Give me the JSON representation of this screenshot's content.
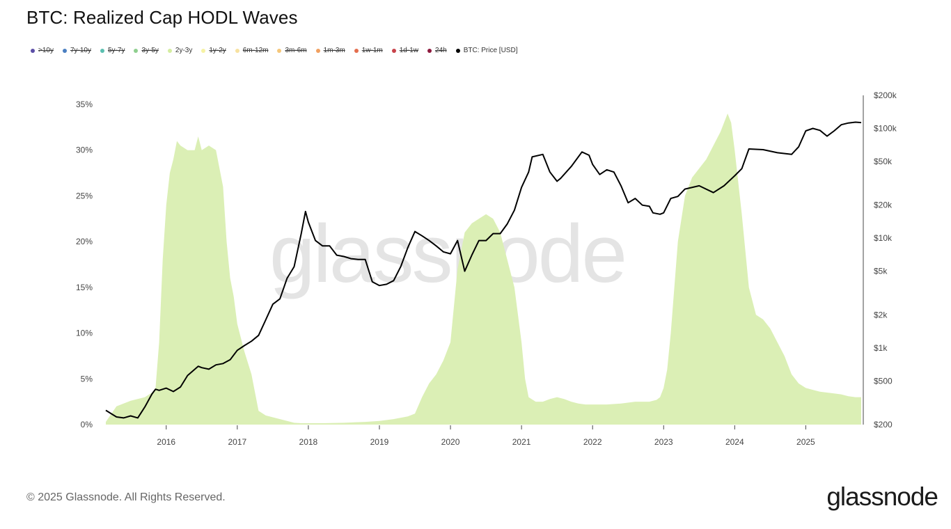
{
  "header": {
    "title": "BTC: Realized Cap HODL Waves"
  },
  "legend": [
    {
      "label": ">10y",
      "color": "#5b4ea6",
      "active": false
    },
    {
      "label": "7y-10y",
      "color": "#4a7fc1",
      "active": false
    },
    {
      "label": "5y-7y",
      "color": "#5bbfb0",
      "active": false
    },
    {
      "label": "3y-5y",
      "color": "#8fcf8f",
      "active": false
    },
    {
      "label": "2y-3y",
      "color": "#d4eda0",
      "active": true
    },
    {
      "label": "1y-2y",
      "color": "#f6f2a4",
      "active": false
    },
    {
      "label": "6m-12m",
      "color": "#f7e2a0",
      "active": false
    },
    {
      "label": "3m-6m",
      "color": "#f5c77a",
      "active": false
    },
    {
      "label": "1m-3m",
      "color": "#f0a060",
      "active": false
    },
    {
      "label": "1w-1m",
      "color": "#e46e4e",
      "active": false
    },
    {
      "label": "1d-1w",
      "color": "#c8424a",
      "active": false
    },
    {
      "label": "24h",
      "color": "#8e1a3e",
      "active": false
    },
    {
      "label": "BTC: Price [USD]",
      "color": "#000000",
      "active": true
    }
  ],
  "watermark": "glassnode",
  "footer": {
    "copyright": "© 2025 Glassnode. All Rights Reserved.",
    "logo": "glassnode"
  },
  "chart_data": {
    "type": "area",
    "title": "BTC: Realized Cap HODL Waves",
    "x_ticks": [
      "2016",
      "2017",
      "2018",
      "2019",
      "2020",
      "2021",
      "2022",
      "2023",
      "2024",
      "2025"
    ],
    "y_left": {
      "ticks": [
        "0%",
        "5%",
        "10%",
        "15%",
        "20%",
        "25%",
        "30%",
        "35%"
      ],
      "range": [
        0,
        35
      ],
      "unit": "%"
    },
    "y_right": {
      "ticks": [
        "$200",
        "$500",
        "$1k",
        "$2k",
        "$5k",
        "$10k",
        "$20k",
        "$50k",
        "$100k",
        "$200k"
      ],
      "range": [
        200,
        200000
      ],
      "scale": "log"
    },
    "grid": false,
    "legend_position": "top-left",
    "colors": {
      "area": "#dbefb5",
      "price_line": "#000000"
    },
    "series": [
      {
        "name": "2y-3y",
        "axis": "left",
        "style": "area",
        "x": [
          2015.15,
          2015.3,
          2015.5,
          2015.7,
          2015.8,
          2015.85,
          2015.9,
          2015.95,
          2016.0,
          2016.05,
          2016.1,
          2016.15,
          2016.2,
          2016.3,
          2016.4,
          2016.45,
          2016.5,
          2016.6,
          2016.7,
          2016.8,
          2016.85,
          2016.9,
          2016.95,
          2017.0,
          2017.1,
          2017.2,
          2017.3,
          2017.4,
          2017.5,
          2017.6,
          2017.7,
          2017.8,
          2017.9,
          2018.0,
          2018.2,
          2018.5,
          2018.8,
          2019.0,
          2019.2,
          2019.4,
          2019.5,
          2019.6,
          2019.7,
          2019.8,
          2019.9,
          2020.0,
          2020.1,
          2020.2,
          2020.3,
          2020.4,
          2020.5,
          2020.6,
          2020.7,
          2020.8,
          2020.9,
          2021.0,
          2021.05,
          2021.1,
          2021.2,
          2021.3,
          2021.4,
          2021.5,
          2021.6,
          2021.7,
          2021.8,
          2021.9,
          2022.0,
          2022.2,
          2022.4,
          2022.6,
          2022.8,
          2022.9,
          2022.95,
          2023.0,
          2023.05,
          2023.1,
          2023.2,
          2023.3,
          2023.4,
          2023.5,
          2023.6,
          2023.7,
          2023.8,
          2023.85,
          2023.9,
          2023.95,
          2024.0,
          2024.1,
          2024.2,
          2024.3,
          2024.4,
          2024.5,
          2024.6,
          2024.7,
          2024.8,
          2024.9,
          2025.0,
          2025.1,
          2025.2,
          2025.3,
          2025.4,
          2025.5,
          2025.6,
          2025.7,
          2025.78
        ],
        "values": [
          0.3,
          2.0,
          2.6,
          3.0,
          3.5,
          4.0,
          9.0,
          18.0,
          24.0,
          27.5,
          29.0,
          31.0,
          30.5,
          30.0,
          30.0,
          31.5,
          30.0,
          30.5,
          30.0,
          26.0,
          20.0,
          16.0,
          14.0,
          11.0,
          8.0,
          5.5,
          1.5,
          1.0,
          0.8,
          0.6,
          0.4,
          0.2,
          0.15,
          0.15,
          0.15,
          0.2,
          0.3,
          0.4,
          0.6,
          0.9,
          1.2,
          3.0,
          4.5,
          5.5,
          7.0,
          9.0,
          17.0,
          21.0,
          22.0,
          22.5,
          23.0,
          22.5,
          21.0,
          18.0,
          15.0,
          9.0,
          5.0,
          3.0,
          2.5,
          2.5,
          2.8,
          3.0,
          2.8,
          2.5,
          2.3,
          2.2,
          2.2,
          2.2,
          2.3,
          2.5,
          2.5,
          2.7,
          3.0,
          4.0,
          6.0,
          10.0,
          20.0,
          25.0,
          27.0,
          28.0,
          29.0,
          30.5,
          32.0,
          33.0,
          34.0,
          33.0,
          30.0,
          23.0,
          15.0,
          12.0,
          11.5,
          10.5,
          9.0,
          7.5,
          5.5,
          4.5,
          4.0,
          3.8,
          3.6,
          3.5,
          3.4,
          3.3,
          3.1,
          3.0,
          3.0
        ]
      },
      {
        "name": "BTC: Price [USD]",
        "axis": "right",
        "style": "line",
        "x": [
          2015.15,
          2015.3,
          2015.4,
          2015.5,
          2015.6,
          2015.7,
          2015.8,
          2015.85,
          2015.9,
          2016.0,
          2016.1,
          2016.2,
          2016.3,
          2016.45,
          2016.5,
          2016.6,
          2016.7,
          2016.8,
          2016.9,
          2017.0,
          2017.1,
          2017.2,
          2017.3,
          2017.4,
          2017.5,
          2017.6,
          2017.7,
          2017.8,
          2017.9,
          2017.96,
          2018.0,
          2018.1,
          2018.2,
          2018.3,
          2018.4,
          2018.5,
          2018.6,
          2018.7,
          2018.8,
          2018.9,
          2019.0,
          2019.1,
          2019.2,
          2019.3,
          2019.4,
          2019.5,
          2019.6,
          2019.7,
          2019.8,
          2019.9,
          2020.0,
          2020.1,
          2020.2,
          2020.3,
          2020.4,
          2020.5,
          2020.6,
          2020.7,
          2020.8,
          2020.9,
          2021.0,
          2021.1,
          2021.15,
          2021.3,
          2021.4,
          2021.5,
          2021.55,
          2021.7,
          2021.85,
          2021.95,
          2022.0,
          2022.1,
          2022.2,
          2022.3,
          2022.4,
          2022.5,
          2022.6,
          2022.7,
          2022.8,
          2022.85,
          2022.95,
          2023.0,
          2023.1,
          2023.2,
          2023.3,
          2023.5,
          2023.7,
          2023.85,
          2024.0,
          2024.1,
          2024.2,
          2024.4,
          2024.6,
          2024.8,
          2024.9,
          2025.0,
          2025.1,
          2025.2,
          2025.3,
          2025.4,
          2025.5,
          2025.6,
          2025.7,
          2025.78
        ],
        "values": [
          270,
          235,
          230,
          240,
          230,
          290,
          380,
          420,
          410,
          430,
          400,
          440,
          560,
          680,
          660,
          640,
          700,
          720,
          780,
          950,
          1050,
          1150,
          1300,
          1800,
          2500,
          2800,
          4300,
          5500,
          11000,
          17500,
          14000,
          9500,
          8500,
          8500,
          7000,
          6800,
          6500,
          6400,
          6400,
          4000,
          3700,
          3800,
          4100,
          5500,
          8200,
          11500,
          10500,
          9500,
          8500,
          7500,
          7200,
          9500,
          5000,
          7000,
          9500,
          9500,
          11000,
          11000,
          13500,
          18000,
          29000,
          40000,
          55000,
          58000,
          40000,
          33000,
          35000,
          45000,
          61000,
          57000,
          47000,
          38000,
          42000,
          40000,
          30000,
          21000,
          23000,
          20000,
          19500,
          17000,
          16500,
          17000,
          23000,
          24000,
          28000,
          30000,
          26000,
          30000,
          37000,
          43000,
          65000,
          64000,
          60000,
          58000,
          68000,
          95000,
          100000,
          96000,
          85000,
          95000,
          108000,
          112000,
          114000,
          113000
        ]
      }
    ]
  }
}
